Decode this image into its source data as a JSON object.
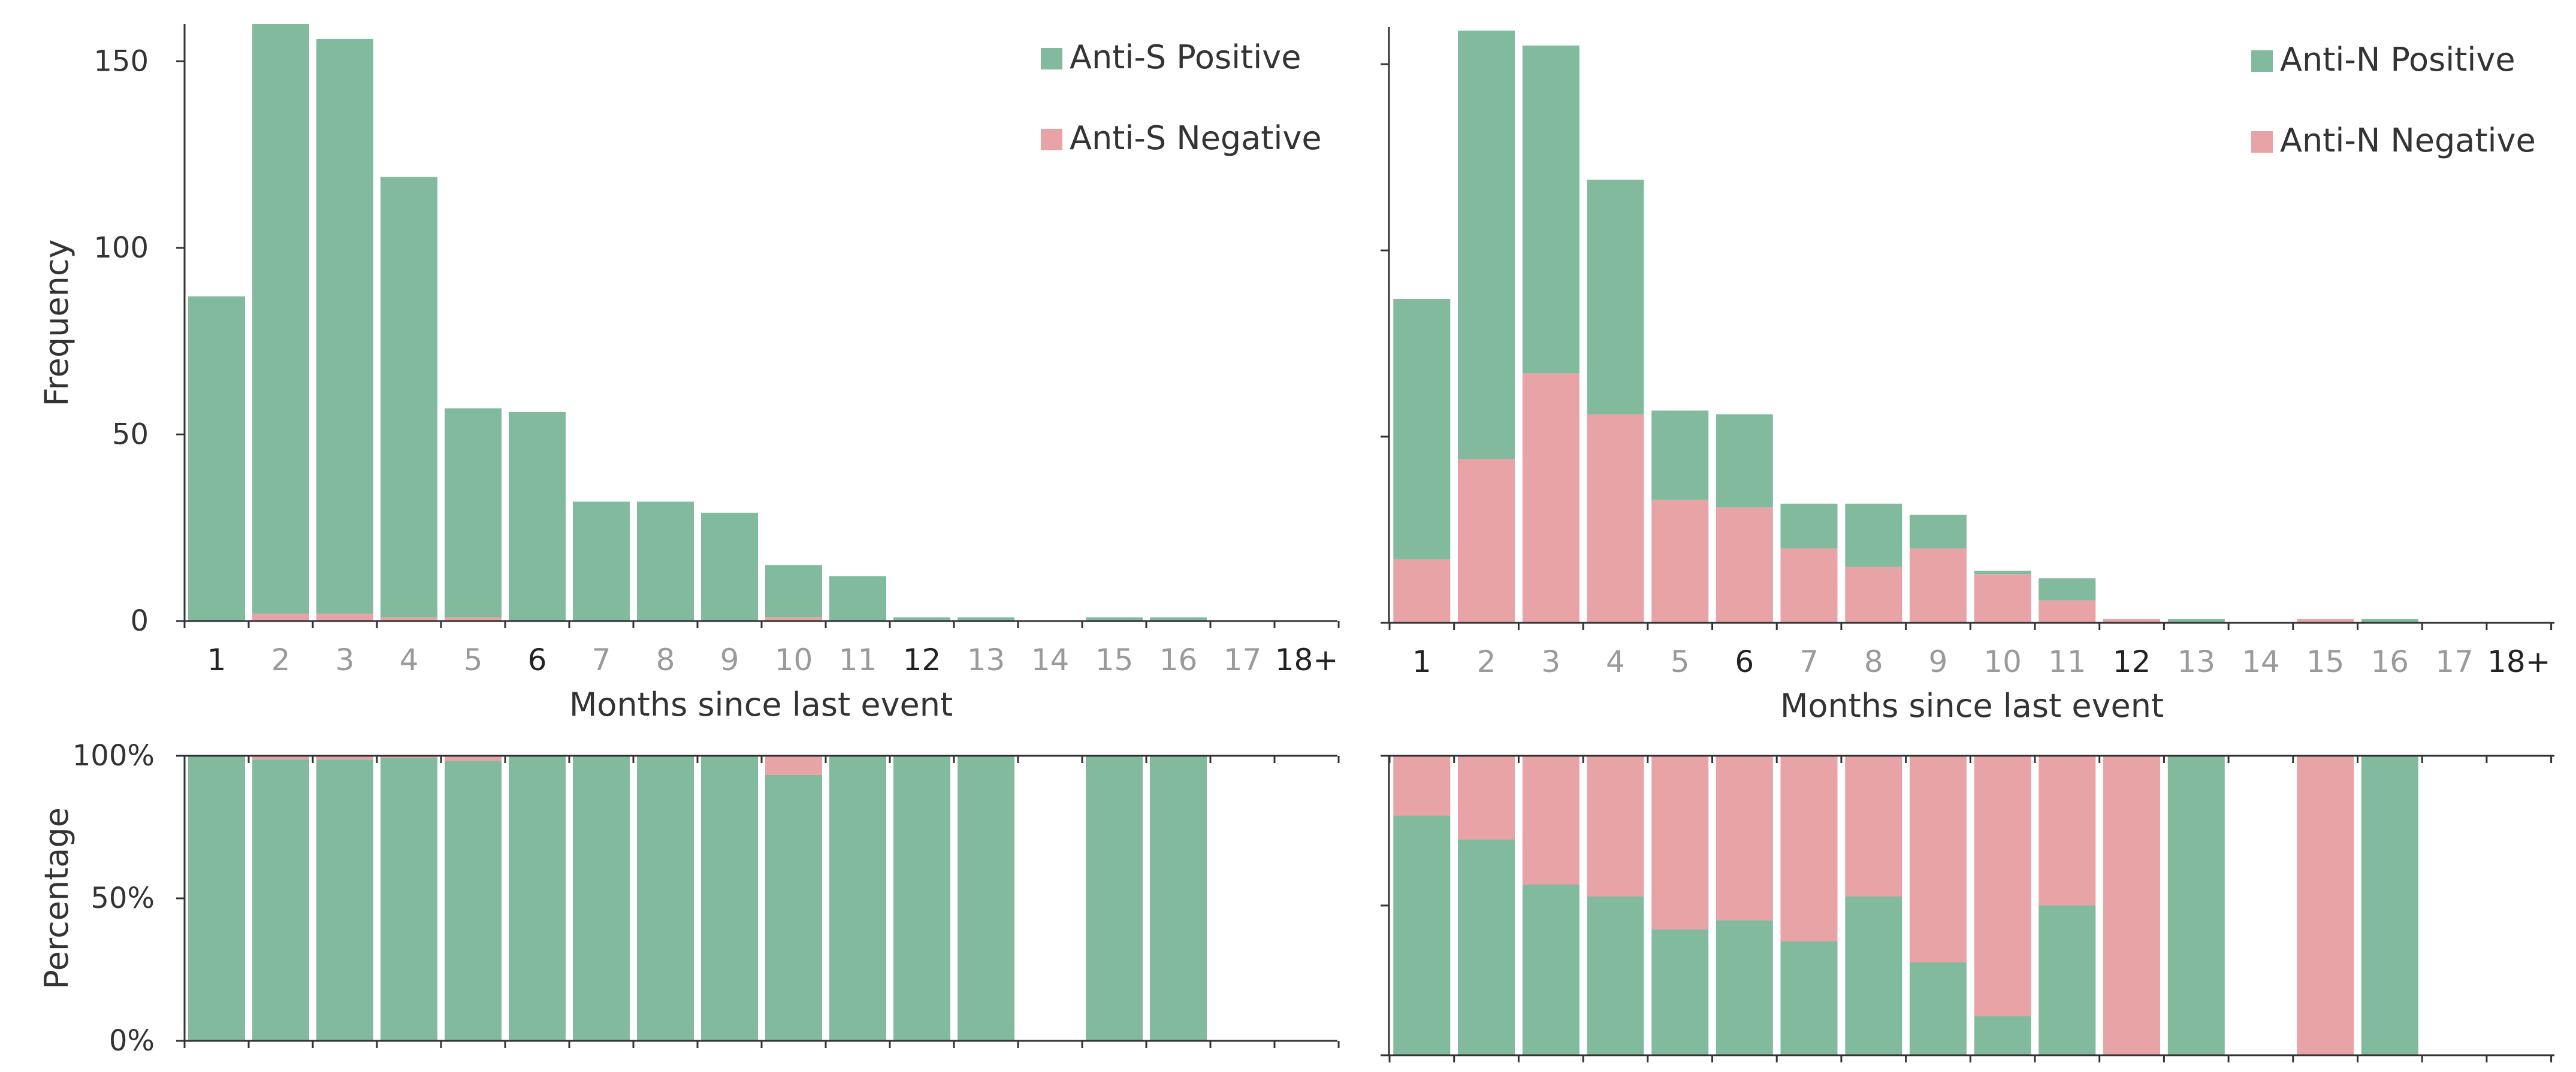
{
  "colors": {
    "positive": "#82ba9d",
    "negative": "#e7a3a5",
    "axis": "#333333",
    "tick_dim": "#9a9a9a",
    "tick_dark": "#222222"
  },
  "chart_data": [
    {
      "type": "bar",
      "stacked": true,
      "panel": "top-left",
      "categories": [
        "1",
        "2",
        "3",
        "4",
        "5",
        "6",
        "7",
        "8",
        "9",
        "10",
        "11",
        "12",
        "13",
        "14",
        "15",
        "16",
        "17",
        "18+"
      ],
      "emphasized_categories": [
        "1",
        "6",
        "12",
        "18+"
      ],
      "series": [
        {
          "name": "Anti-S Negative",
          "color": "#e7a3a5",
          "values": [
            0,
            2,
            2,
            1,
            1,
            0,
            0,
            0,
            0,
            1,
            0,
            0,
            0,
            0,
            0,
            0,
            0,
            0
          ]
        },
        {
          "name": "Anti-S Positive",
          "color": "#82ba9d",
          "values": [
            87,
            158,
            154,
            118,
            56,
            56,
            32,
            32,
            29,
            14,
            12,
            1,
            1,
            0,
            1,
            1,
            0,
            0
          ]
        }
      ],
      "xlabel": "Months since last event",
      "ylabel": "Frequency",
      "ylim": [
        0,
        160
      ],
      "yticks": [
        "0",
        "50",
        "100",
        "150"
      ],
      "legend_position": "top-right",
      "legend": [
        "Anti-S Positive",
        "Anti-S Negative"
      ]
    },
    {
      "type": "bar",
      "stacked": true,
      "panel": "top-right",
      "categories": [
        "1",
        "2",
        "3",
        "4",
        "5",
        "6",
        "7",
        "8",
        "9",
        "10",
        "11",
        "12",
        "13",
        "14",
        "15",
        "16",
        "17",
        "18+"
      ],
      "emphasized_categories": [
        "1",
        "6",
        "12",
        "18+"
      ],
      "series": [
        {
          "name": "Anti-N Negative",
          "color": "#e7a3a5",
          "values": [
            17,
            44,
            67,
            56,
            33,
            31,
            20,
            15,
            20,
            13,
            6,
            1,
            0,
            0,
            1,
            0,
            0,
            0
          ]
        },
        {
          "name": "Anti-N Positive",
          "color": "#82ba9d",
          "values": [
            70,
            115,
            88,
            63,
            24,
            25,
            12,
            17,
            9,
            1,
            6,
            0,
            1,
            0,
            0,
            1,
            0,
            0
          ]
        }
      ],
      "xlabel": "Months since last event",
      "ylabel": "",
      "ylim": [
        0,
        160
      ],
      "legend_position": "top-right",
      "legend": [
        "Anti-N Positive",
        "Anti-N Negative"
      ]
    },
    {
      "type": "bar",
      "stacked": true,
      "panel": "bottom-left",
      "categories": [
        "1",
        "2",
        "3",
        "4",
        "5",
        "6",
        "7",
        "8",
        "9",
        "10",
        "11",
        "12",
        "13",
        "14",
        "15",
        "16",
        "17",
        "18+"
      ],
      "series": [
        {
          "name": "Anti-S Positive %",
          "color": "#82ba9d",
          "values": [
            100,
            98.7,
            98.7,
            99.2,
            98.2,
            100,
            100,
            100,
            100,
            93.3,
            100,
            100,
            100,
            null,
            100,
            100,
            null,
            null
          ]
        },
        {
          "name": "Anti-S Negative %",
          "color": "#e7a3a5",
          "values": [
            0,
            1.3,
            1.3,
            0.8,
            1.8,
            0,
            0,
            0,
            0,
            6.7,
            0,
            0,
            0,
            null,
            0,
            0,
            null,
            null
          ]
        }
      ],
      "ylabel": "Percentage",
      "ylim": [
        0,
        100
      ],
      "yticks": [
        "0%",
        "50%",
        "100%"
      ]
    },
    {
      "type": "bar",
      "stacked": true,
      "panel": "bottom-right",
      "categories": [
        "1",
        "2",
        "3",
        "4",
        "5",
        "6",
        "7",
        "8",
        "9",
        "10",
        "11",
        "12",
        "13",
        "14",
        "15",
        "16",
        "17",
        "18+"
      ],
      "series": [
        {
          "name": "Anti-N Positive %",
          "color": "#82ba9d",
          "values": [
            80,
            72,
            57,
            53,
            42,
            45,
            38,
            53,
            31,
            13,
            50,
            0,
            100,
            null,
            0,
            100,
            null,
            null
          ]
        },
        {
          "name": "Anti-N Negative %",
          "color": "#e7a3a5",
          "values": [
            20,
            28,
            43,
            47,
            58,
            55,
            62,
            47,
            69,
            87,
            50,
            100,
            0,
            null,
            100,
            0,
            null,
            null
          ]
        }
      ],
      "ylabel": "",
      "ylim": [
        0,
        100
      ]
    }
  ]
}
